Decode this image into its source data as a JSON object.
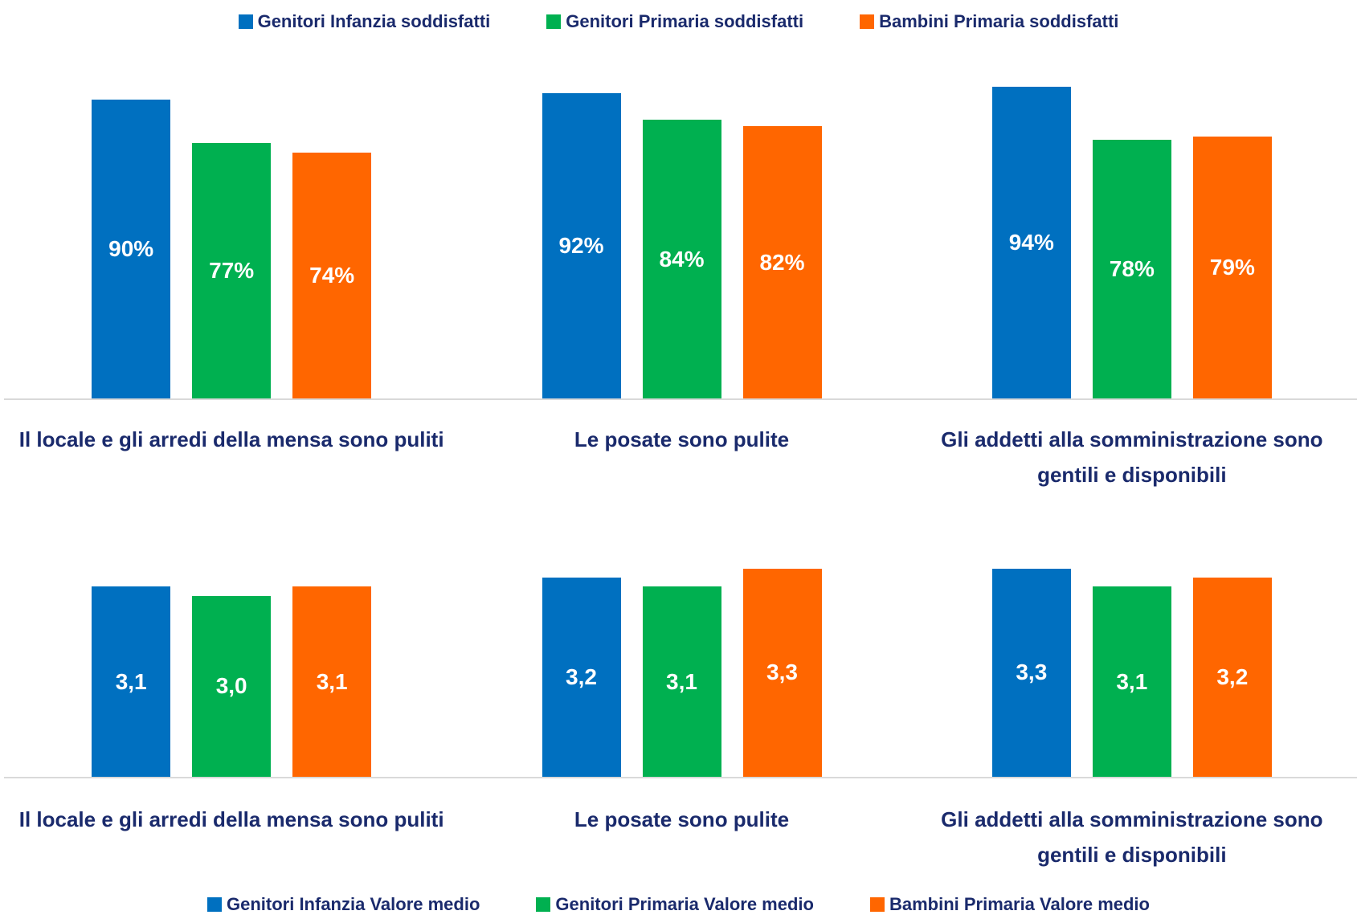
{
  "chart_data": [
    {
      "type": "bar",
      "categories": [
        "Il locale e gli arredi della mensa sono puliti",
        "Le posate sono pulite",
        "Gli addetti alla somministrazione sono gentili e disponibili"
      ],
      "series": [
        {
          "name": "Genitori Infanzia soddisfatti",
          "color": "#0070c0",
          "values": [
            90,
            92,
            94
          ],
          "value_labels": [
            "90%",
            "92%",
            "94%"
          ]
        },
        {
          "name": "Genitori Primaria soddisfatti",
          "color": "#00b050",
          "values": [
            77,
            84,
            78
          ],
          "value_labels": [
            "77%",
            "84%",
            "78%"
          ]
        },
        {
          "name": "Bambini Primaria soddisfatti",
          "color": "#ff6600",
          "values": [
            74,
            82,
            79
          ],
          "value_labels": [
            "74%",
            "82%",
            "79%"
          ]
        }
      ],
      "ylim": [
        0,
        100
      ],
      "legend": "top"
    },
    {
      "type": "bar",
      "categories": [
        "Il locale e gli arredi della mensa sono puliti",
        "Le posate sono pulite",
        "Gli addetti alla somministrazione sono gentili e disponibili"
      ],
      "series": [
        {
          "name": "Genitori Infanzia Valore medio",
          "color": "#0070c0",
          "values": [
            3.1,
            3.2,
            3.3
          ],
          "value_labels": [
            "3,1",
            "3,2",
            "3,3"
          ]
        },
        {
          "name": "Genitori Primaria Valore medio",
          "color": "#00b050",
          "values": [
            3.0,
            3.1,
            3.1
          ],
          "value_labels": [
            "3,0",
            "3,1",
            "3,1"
          ]
        },
        {
          "name": "Bambini Primaria Valore medio",
          "color": "#ff6600",
          "values": [
            3.1,
            3.3,
            3.2
          ],
          "value_labels": [
            "3,1",
            "3,3",
            "3,2"
          ]
        }
      ],
      "ylim": [
        1,
        4
      ],
      "legend": "bottom"
    }
  ]
}
